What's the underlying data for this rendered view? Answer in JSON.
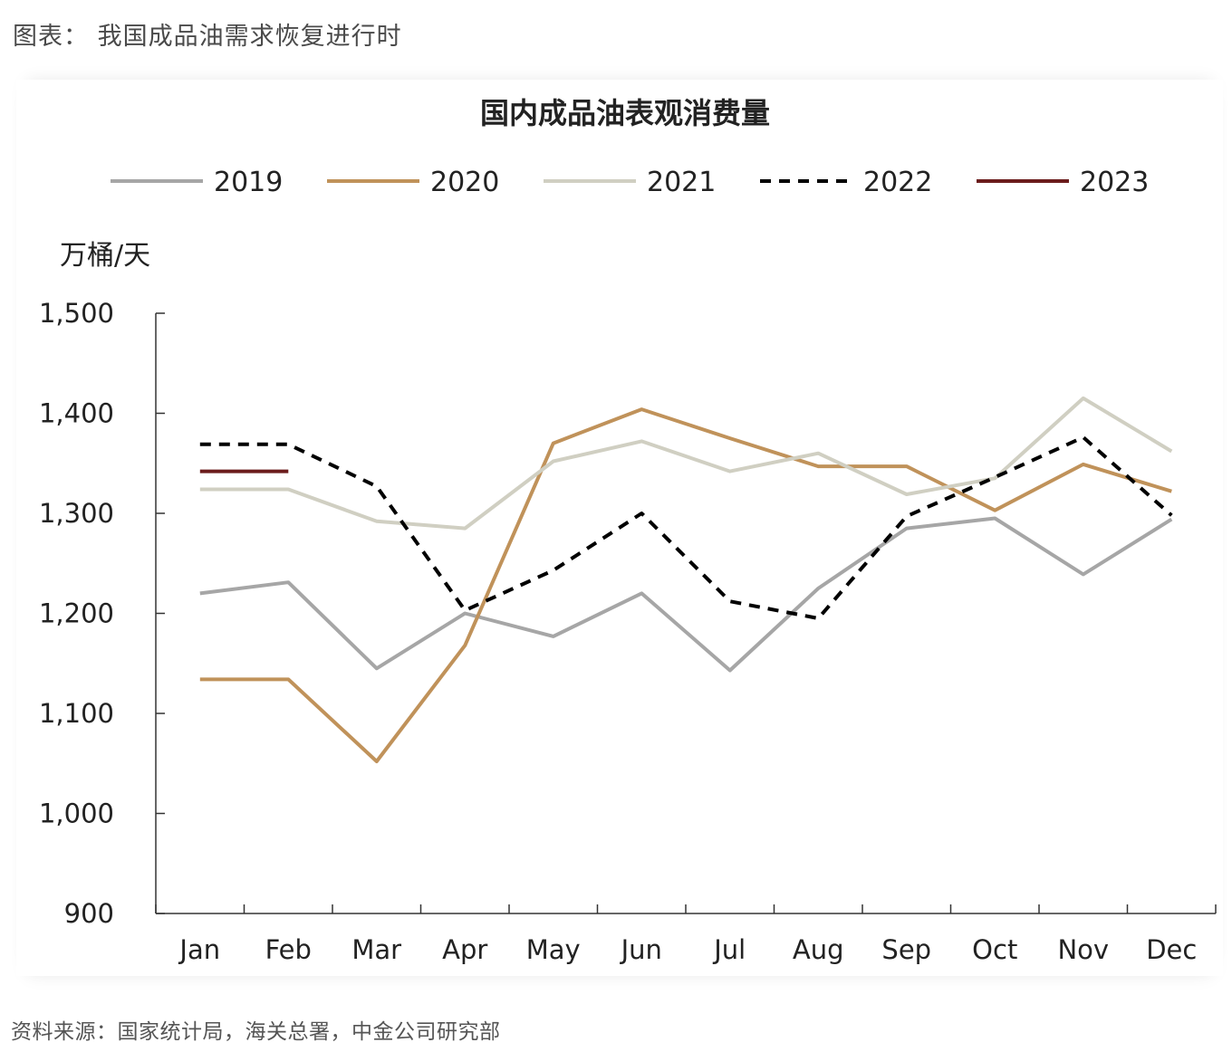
{
  "caption": "图表：  我国成品油需求恢复进行时",
  "source": "资料来源：国家统计局，海关总署，中金公司研究部",
  "colors": {
    "2019": "#a6a6a6",
    "2020": "#c0925a",
    "2021": "#d0cfc2",
    "2022": "#000000",
    "2023": "#6b1c1c",
    "axis": "#333333"
  },
  "chart_data": {
    "type": "line",
    "title": "国内成品油表观消费量",
    "ylabel": "万桶/天",
    "xlabel": "",
    "ylim": [
      900,
      1500
    ],
    "yticks": [
      900,
      1000,
      1100,
      1200,
      1300,
      1400,
      1500
    ],
    "ytick_labels": [
      "900",
      "1,000",
      "1,100",
      "1,200",
      "1,300",
      "1,400",
      "1,500"
    ],
    "categories": [
      "Jan",
      "Feb",
      "Mar",
      "Apr",
      "May",
      "Jun",
      "Jul",
      "Aug",
      "Sep",
      "Oct",
      "Nov",
      "Dec"
    ],
    "legend_position": "top",
    "grid": false,
    "series": [
      {
        "name": "2019",
        "style": "solid",
        "values": [
          1220,
          1231,
          1145,
          1200,
          1177,
          1220,
          1143,
          1225,
          1285,
          1295,
          1239,
          1294
        ]
      },
      {
        "name": "2020",
        "style": "solid",
        "values": [
          1134,
          1134,
          1052,
          1168,
          1370,
          1404,
          1375,
          1347,
          1347,
          1303,
          1349,
          1322
        ]
      },
      {
        "name": "2021",
        "style": "solid",
        "values": [
          1324,
          1324,
          1292,
          1285,
          1352,
          1372,
          1342,
          1360,
          1319,
          1335,
          1415,
          1362
        ]
      },
      {
        "name": "2022",
        "style": "dashed",
        "values": [
          1369,
          1369,
          1327,
          1203,
          1243,
          1300,
          1212,
          1195,
          1297,
          1336,
          1376,
          1298
        ]
      },
      {
        "name": "2023",
        "style": "solid",
        "values": [
          1342,
          1342,
          null,
          null,
          null,
          null,
          null,
          null,
          null,
          null,
          null,
          null
        ]
      }
    ]
  }
}
